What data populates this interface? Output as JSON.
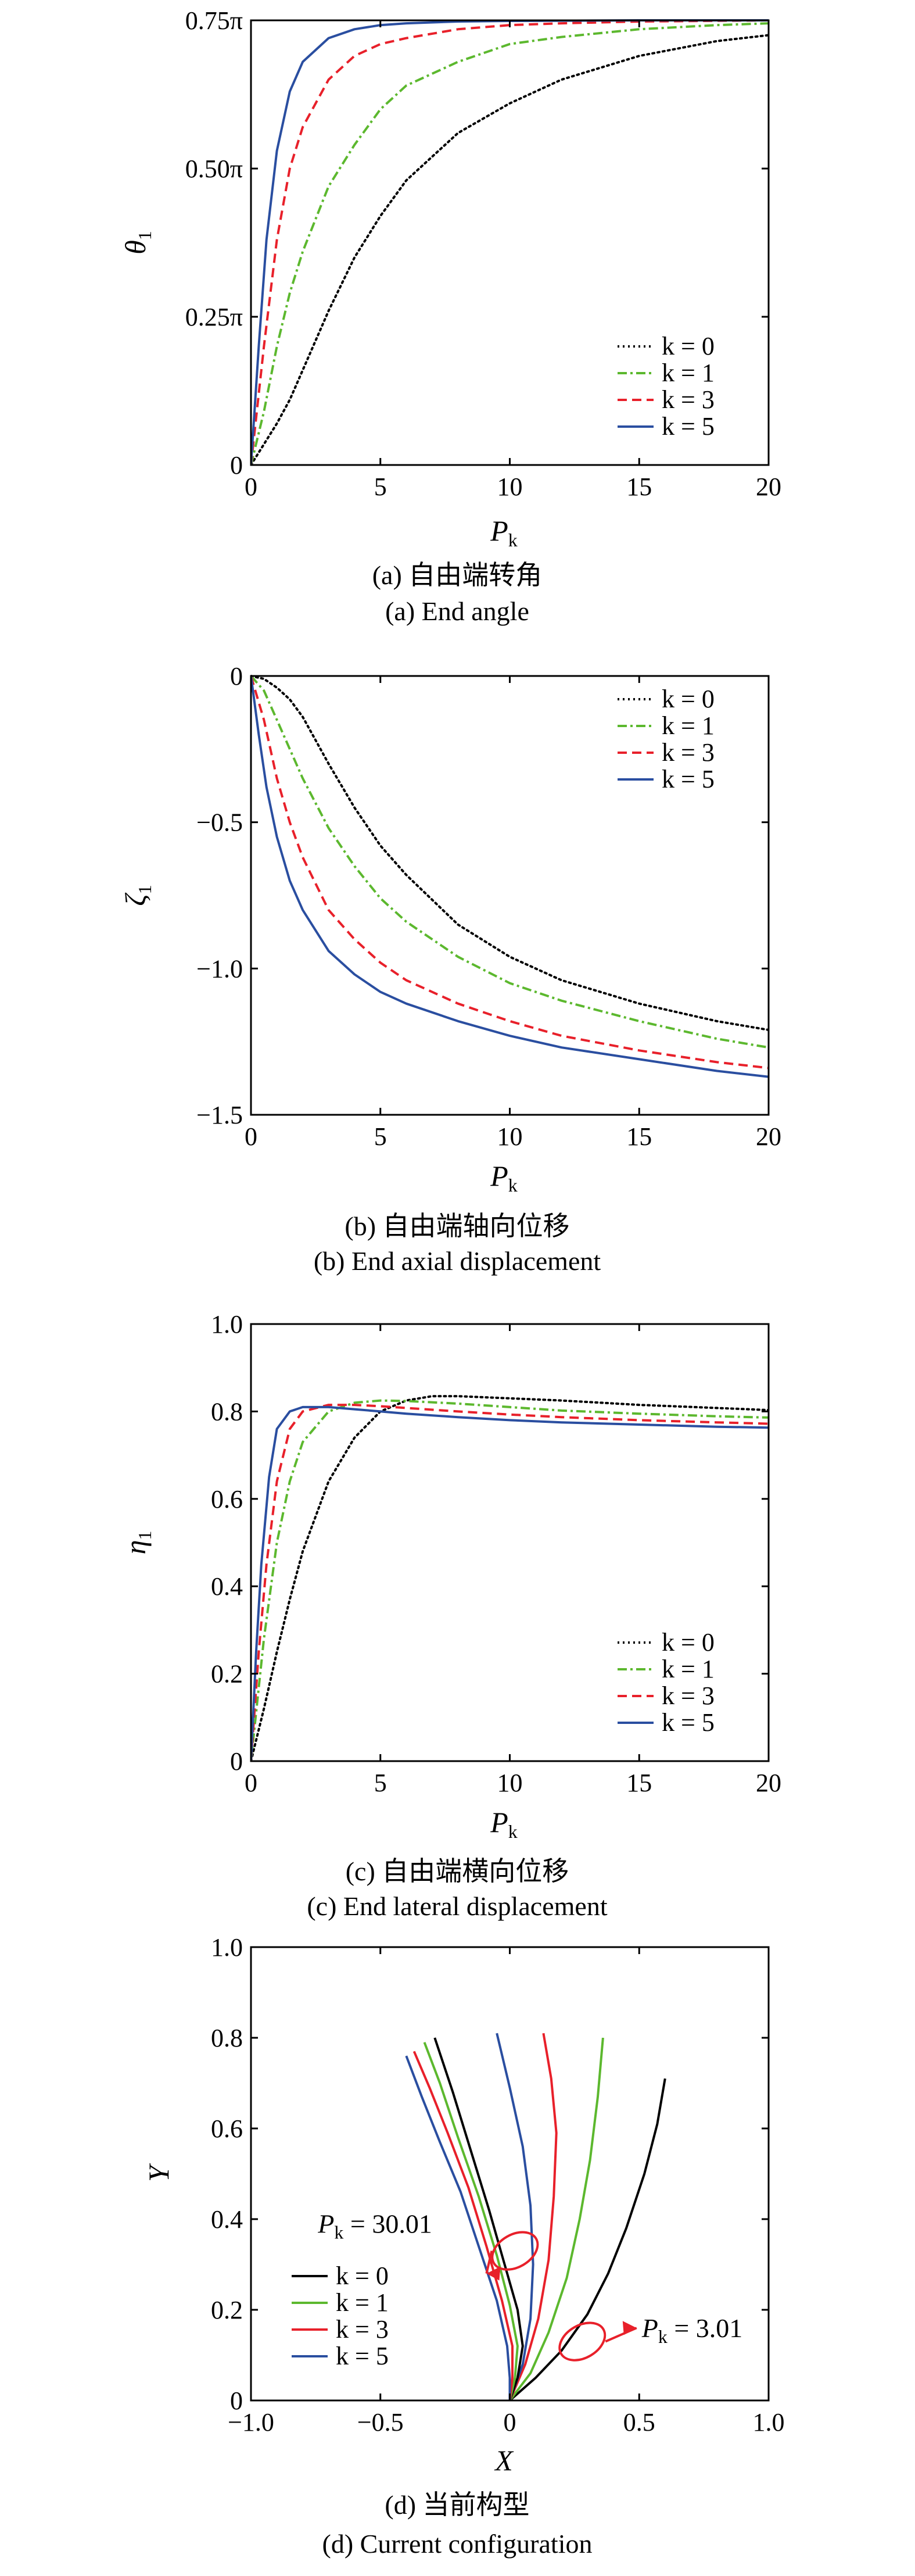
{
  "chart_data": [
    {
      "type": "line",
      "panel": "a",
      "xlabel": "P",
      "xlabel_sub": "k",
      "ylabel": "θ",
      "ylabel_sub": "1",
      "xlim": [
        0,
        20
      ],
      "ylim": [
        0,
        0.75
      ],
      "x_ticks": [
        {
          "v": 0,
          "label": "0"
        },
        {
          "v": 5,
          "label": "5"
        },
        {
          "v": 10,
          "label": "10"
        },
        {
          "v": 15,
          "label": "15"
        },
        {
          "v": 20,
          "label": "20"
        }
      ],
      "y_ticks": [
        {
          "v": 0,
          "label": "0"
        },
        {
          "v": 0.25,
          "label": "0.25π"
        },
        {
          "v": 0.5,
          "label": "0.50π"
        },
        {
          "v": 0.75,
          "label": "0.75π"
        }
      ],
      "legend_position": "bottom-right",
      "caption_cn": "(a) 自由端转角",
      "caption_en": "(a) End angle",
      "series": [
        {
          "name": "k = 0",
          "style": "dotted",
          "color": "#000000",
          "x": [
            0,
            0.5,
            1,
            1.5,
            2,
            3,
            4,
            5,
            6,
            8,
            10,
            12,
            15,
            18,
            20
          ],
          "y": [
            0,
            0.035,
            0.07,
            0.11,
            0.16,
            0.26,
            0.35,
            0.42,
            0.48,
            0.56,
            0.61,
            0.65,
            0.69,
            0.715,
            0.725
          ]
        },
        {
          "name": "k = 1",
          "style": "dashdot",
          "color": "#5cb82e",
          "x": [
            0,
            0.5,
            1,
            1.5,
            2,
            3,
            4,
            5,
            6,
            8,
            10,
            12,
            15,
            18,
            20
          ],
          "y": [
            0,
            0.09,
            0.2,
            0.29,
            0.36,
            0.47,
            0.54,
            0.6,
            0.64,
            0.68,
            0.71,
            0.722,
            0.735,
            0.742,
            0.745
          ]
        },
        {
          "name": "k = 3",
          "style": "dashed",
          "color": "#e8202a",
          "x": [
            0,
            0.5,
            1,
            1.5,
            2,
            3,
            4,
            5,
            6,
            8,
            10,
            12,
            15,
            20
          ],
          "y": [
            0,
            0.2,
            0.38,
            0.5,
            0.57,
            0.65,
            0.69,
            0.71,
            0.72,
            0.735,
            0.742,
            0.745,
            0.748,
            0.75
          ]
        },
        {
          "name": "k = 5",
          "style": "solid",
          "color": "#2a4ea0",
          "x": [
            0,
            0.3,
            0.6,
            1,
            1.5,
            2,
            3,
            4,
            5,
            6,
            8,
            10,
            15,
            20
          ],
          "y": [
            0,
            0.2,
            0.38,
            0.53,
            0.63,
            0.68,
            0.72,
            0.735,
            0.742,
            0.745,
            0.748,
            0.749,
            0.75,
            0.75
          ]
        }
      ]
    },
    {
      "type": "line",
      "panel": "b",
      "xlabel": "P",
      "xlabel_sub": "k",
      "ylabel": "ζ",
      "ylabel_sub": "1",
      "xlim": [
        0,
        20
      ],
      "ylim": [
        -1.5,
        0
      ],
      "x_ticks": [
        {
          "v": 0,
          "label": "0"
        },
        {
          "v": 5,
          "label": "5"
        },
        {
          "v": 10,
          "label": "10"
        },
        {
          "v": 15,
          "label": "15"
        },
        {
          "v": 20,
          "label": "20"
        }
      ],
      "y_ticks": [
        {
          "v": 0,
          "label": "0"
        },
        {
          "v": -0.5,
          "label": "−0.5"
        },
        {
          "v": -1.0,
          "label": "−1.0"
        },
        {
          "v": -1.5,
          "label": "−1.5"
        }
      ],
      "legend_position": "top-right",
      "caption_cn": "(b) 自由端轴向位移",
      "caption_en": "(b) End axial displacement",
      "series": [
        {
          "name": "k = 0",
          "style": "dotted",
          "color": "#000000",
          "x": [
            0,
            0.5,
            1,
            1.5,
            2,
            3,
            4,
            5,
            6,
            8,
            10,
            12,
            15,
            18,
            20
          ],
          "y": [
            0,
            -0.01,
            -0.04,
            -0.08,
            -0.14,
            -0.3,
            -0.45,
            -0.58,
            -0.68,
            -0.85,
            -0.96,
            -1.04,
            -1.12,
            -1.18,
            -1.21
          ]
        },
        {
          "name": "k = 1",
          "style": "dashdot",
          "color": "#5cb82e",
          "x": [
            0,
            0.5,
            1,
            1.5,
            2,
            3,
            4,
            5,
            6,
            8,
            10,
            12,
            15,
            18,
            20
          ],
          "y": [
            0,
            -0.05,
            -0.15,
            -0.25,
            -0.35,
            -0.52,
            -0.65,
            -0.76,
            -0.84,
            -0.96,
            -1.05,
            -1.11,
            -1.18,
            -1.24,
            -1.27
          ]
        },
        {
          "name": "k = 3",
          "style": "dashed",
          "color": "#e8202a",
          "x": [
            0,
            0.5,
            1,
            1.5,
            2,
            3,
            4,
            5,
            6,
            8,
            10,
            12,
            15,
            18,
            20
          ],
          "y": [
            0,
            -0.15,
            -0.35,
            -0.5,
            -0.62,
            -0.8,
            -0.9,
            -0.98,
            -1.04,
            -1.12,
            -1.18,
            -1.23,
            -1.28,
            -1.32,
            -1.34
          ]
        },
        {
          "name": "k = 5",
          "style": "solid",
          "color": "#2a4ea0",
          "x": [
            0,
            0.3,
            0.6,
            1,
            1.5,
            2,
            3,
            4,
            5,
            6,
            8,
            10,
            12,
            15,
            18,
            20
          ],
          "y": [
            0,
            -0.2,
            -0.38,
            -0.55,
            -0.7,
            -0.8,
            -0.94,
            -1.02,
            -1.08,
            -1.12,
            -1.18,
            -1.23,
            -1.27,
            -1.31,
            -1.35,
            -1.37
          ]
        }
      ]
    },
    {
      "type": "line",
      "panel": "c",
      "xlabel": "P",
      "xlabel_sub": "k",
      "ylabel": "η",
      "ylabel_sub": "1",
      "xlim": [
        0,
        20
      ],
      "ylim": [
        0,
        1.0
      ],
      "x_ticks": [
        {
          "v": 0,
          "label": "0"
        },
        {
          "v": 5,
          "label": "5"
        },
        {
          "v": 10,
          "label": "10"
        },
        {
          "v": 15,
          "label": "15"
        },
        {
          "v": 20,
          "label": "20"
        }
      ],
      "y_ticks": [
        {
          "v": 0,
          "label": "0"
        },
        {
          "v": 0.2,
          "label": "0.2"
        },
        {
          "v": 0.4,
          "label": "0.4"
        },
        {
          "v": 0.6,
          "label": "0.6"
        },
        {
          "v": 0.8,
          "label": "0.8"
        },
        {
          "v": 1.0,
          "label": "1.0"
        }
      ],
      "legend_position": "bottom-right",
      "caption_cn": "(c) 自由端横向位移",
      "caption_en": "(c) End lateral displacement",
      "series": [
        {
          "name": "k = 0",
          "style": "dotted",
          "color": "#000000",
          "x": [
            0,
            0.5,
            1,
            1.5,
            2,
            3,
            4,
            5,
            6,
            7,
            8,
            10,
            12,
            15,
            18,
            20
          ],
          "y": [
            0,
            0.12,
            0.25,
            0.37,
            0.48,
            0.64,
            0.74,
            0.8,
            0.825,
            0.835,
            0.835,
            0.83,
            0.825,
            0.815,
            0.808,
            0.803
          ]
        },
        {
          "name": "k = 1",
          "style": "dashdot",
          "color": "#5cb82e",
          "x": [
            0,
            0.5,
            1,
            1.5,
            2,
            3,
            4,
            5,
            6,
            8,
            10,
            12,
            15,
            18,
            20
          ],
          "y": [
            0,
            0.28,
            0.5,
            0.64,
            0.73,
            0.8,
            0.82,
            0.825,
            0.824,
            0.818,
            0.81,
            0.802,
            0.795,
            0.789,
            0.786
          ]
        },
        {
          "name": "k = 3",
          "style": "dashed",
          "color": "#e8202a",
          "x": [
            0,
            0.3,
            0.6,
            1,
            1.5,
            2,
            3,
            4,
            5,
            6,
            8,
            10,
            12,
            15,
            18,
            20
          ],
          "y": [
            0,
            0.25,
            0.45,
            0.64,
            0.76,
            0.8,
            0.815,
            0.815,
            0.812,
            0.808,
            0.8,
            0.793,
            0.787,
            0.78,
            0.775,
            0.772
          ]
        },
        {
          "name": "k = 5",
          "style": "solid",
          "color": "#2a4ea0",
          "x": [
            0,
            0.2,
            0.4,
            0.7,
            1,
            1.5,
            2,
            3,
            4,
            5,
            6,
            8,
            10,
            12,
            15,
            18,
            20
          ],
          "y": [
            0,
            0.25,
            0.45,
            0.65,
            0.76,
            0.8,
            0.81,
            0.81,
            0.805,
            0.8,
            0.795,
            0.787,
            0.78,
            0.775,
            0.77,
            0.765,
            0.763
          ]
        }
      ]
    },
    {
      "type": "line",
      "panel": "d",
      "xlabel": "X",
      "xlabel_sub": "",
      "ylabel": "Y",
      "ylabel_sub": "",
      "xlim": [
        -1.0,
        1.0
      ],
      "ylim": [
        0,
        1.0
      ],
      "x_ticks": [
        {
          "v": -1.0,
          "label": "−1.0"
        },
        {
          "v": -0.5,
          "label": "−0.5"
        },
        {
          "v": 0,
          "label": "0"
        },
        {
          "v": 0.5,
          "label": "0.5"
        },
        {
          "v": 1.0,
          "label": "1.0"
        }
      ],
      "y_ticks": [
        {
          "v": 0,
          "label": "0"
        },
        {
          "v": 0.2,
          "label": "0.2"
        },
        {
          "v": 0.4,
          "label": "0.4"
        },
        {
          "v": 0.6,
          "label": "0.6"
        },
        {
          "v": 0.8,
          "label": "0.8"
        },
        {
          "v": 1.0,
          "label": "1.0"
        }
      ],
      "legend_position": "bottom-left",
      "caption_cn": "(d) 当前构型",
      "caption_en": "(d) Current configuration",
      "annotations": [
        {
          "P": "P",
          "sub": "k",
          "rest": " = 30.01",
          "ellipse": [
            0.02,
            0.33
          ],
          "arrow_to": [
            -0.09,
            0.28
          ],
          "text_at": [
            -0.3,
            0.37
          ],
          "anchor": "end"
        },
        {
          "P": "P",
          "sub": "k",
          "rest": " = 3.01",
          "ellipse": [
            0.28,
            0.13
          ],
          "arrow_to": [
            0.49,
            0.16
          ],
          "text_at": [
            0.51,
            0.14
          ],
          "anchor": "start"
        }
      ],
      "series": [
        {
          "name": "k = 0",
          "style": "solid",
          "color": "#000000",
          "group": "Pk=3.01",
          "x": [
            0,
            0.1,
            0.2,
            0.3,
            0.38,
            0.45,
            0.52,
            0.57,
            0.6
          ],
          "y": [
            0,
            0.05,
            0.11,
            0.19,
            0.28,
            0.38,
            0.5,
            0.61,
            0.71
          ]
        },
        {
          "name": "k = 1",
          "style": "solid",
          "color": "#5cb82e",
          "group": "Pk=3.01",
          "x": [
            0,
            0.08,
            0.15,
            0.22,
            0.27,
            0.31,
            0.34,
            0.36
          ],
          "y": [
            0,
            0.06,
            0.15,
            0.27,
            0.4,
            0.53,
            0.67,
            0.8
          ]
        },
        {
          "name": "k = 3",
          "style": "solid",
          "color": "#e8202a",
          "group": "Pk=3.01",
          "x": [
            0,
            0.06,
            0.11,
            0.15,
            0.17,
            0.18,
            0.16,
            0.13
          ],
          "y": [
            0,
            0.08,
            0.18,
            0.31,
            0.45,
            0.59,
            0.71,
            0.81
          ]
        },
        {
          "name": "k = 5",
          "style": "solid",
          "color": "#2a4ea0",
          "group": "Pk=3.01",
          "x": [
            0,
            0.05,
            0.08,
            0.09,
            0.08,
            0.05,
            0.0,
            -0.05
          ],
          "y": [
            0,
            0.08,
            0.18,
            0.3,
            0.43,
            0.56,
            0.69,
            0.81
          ]
        },
        {
          "name": "k = 0",
          "style": "solid",
          "color": "#000000",
          "group": "Pk=30.01",
          "x": [
            0,
            0.03,
            0.05,
            0.03,
            -0.02,
            -0.08,
            -0.15,
            -0.22,
            -0.29
          ],
          "y": [
            0,
            0.05,
            0.12,
            0.2,
            0.3,
            0.42,
            0.55,
            0.68,
            0.8
          ]
        },
        {
          "name": "k = 1",
          "style": "solid",
          "color": "#5cb82e",
          "group": "Pk=30.01",
          "x": [
            0,
            0.02,
            0.03,
            0.0,
            -0.05,
            -0.12,
            -0.2,
            -0.27,
            -0.33
          ],
          "y": [
            0,
            0.05,
            0.12,
            0.21,
            0.32,
            0.45,
            0.58,
            0.7,
            0.79
          ]
        },
        {
          "name": "k = 3",
          "style": "solid",
          "color": "#e8202a",
          "group": "Pk=30.01",
          "x": [
            0,
            0.01,
            0.01,
            -0.03,
            -0.09,
            -0.16,
            -0.24,
            -0.31,
            -0.37
          ],
          "y": [
            0,
            0.05,
            0.12,
            0.22,
            0.34,
            0.47,
            0.59,
            0.69,
            0.77
          ]
        },
        {
          "name": "k = 5",
          "style": "solid",
          "color": "#2a4ea0",
          "group": "Pk=30.01",
          "x": [
            0,
            0.0,
            -0.01,
            -0.05,
            -0.12,
            -0.19,
            -0.27,
            -0.34,
            -0.4
          ],
          "y": [
            0,
            0.05,
            0.12,
            0.22,
            0.34,
            0.46,
            0.57,
            0.67,
            0.76
          ]
        }
      ]
    }
  ]
}
